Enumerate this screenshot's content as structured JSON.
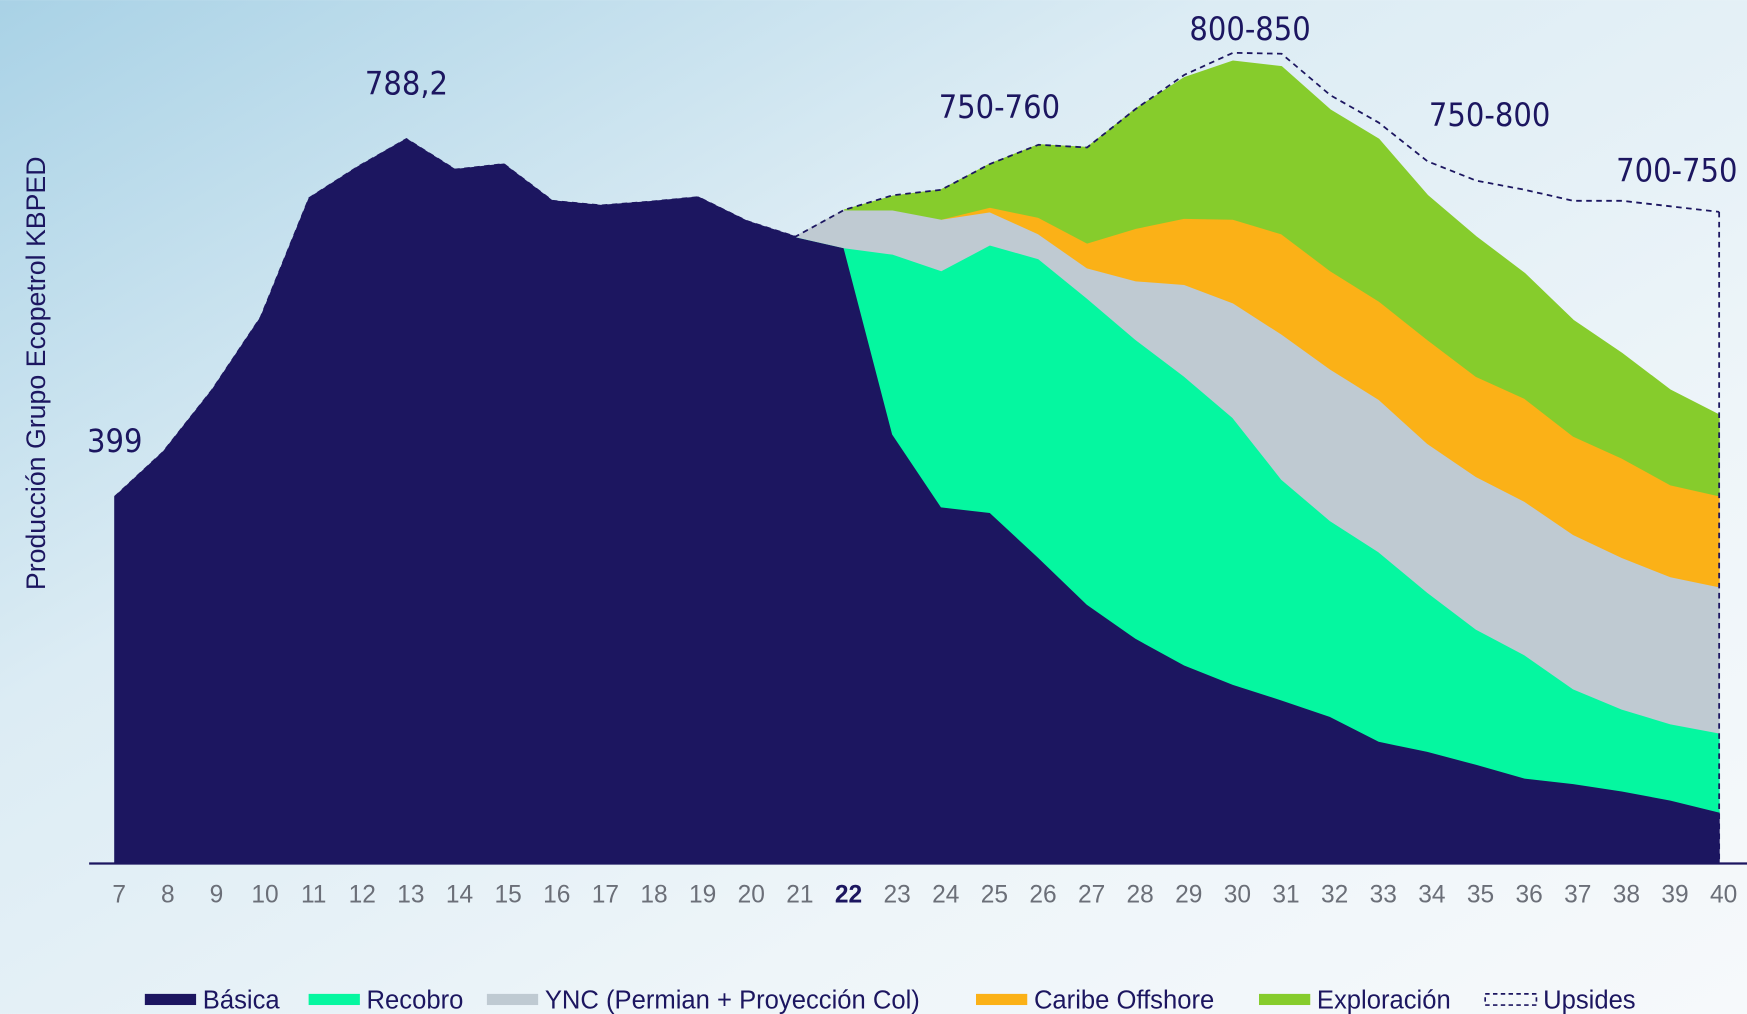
{
  "chart_data": {
    "type": "stacked_area",
    "y_label": "Producción Grupo Ecopetrol KBPED",
    "categories": [
      "7",
      "8",
      "9",
      "10",
      "11",
      "12",
      "13",
      "14",
      "15",
      "16",
      "17",
      "18",
      "19",
      "20",
      "21",
      "22",
      "23",
      "24",
      "25",
      "26",
      "27",
      "28",
      "29",
      "30",
      "31",
      "32",
      "33",
      "34",
      "35",
      "36",
      "37",
      "38",
      "39",
      "40"
    ],
    "highlight_category": "22",
    "series": [
      {
        "name": "Básica",
        "color": "#1c1660",
        "values": [
          399,
          448,
          515,
          594,
          724,
          758,
          788.2,
          755,
          761,
          721,
          716,
          720,
          725,
          699,
          682,
          670,
          467,
          388,
          382,
          333,
          282,
          245,
          216,
          195,
          178,
          160,
          133,
          122,
          108,
          93,
          87,
          79,
          69,
          56
        ],
        "value_labels": [
          "399",
          null,
          null,
          null,
          null,
          null,
          "788,2",
          null,
          null,
          null,
          null,
          null,
          null,
          null,
          null,
          null,
          null,
          null,
          null,
          null,
          null,
          null,
          null,
          null,
          null,
          null,
          null,
          null,
          null,
          null,
          null,
          null,
          null,
          null
        ]
      },
      {
        "name": "Recobro",
        "color": "#05f7a0",
        "values": [
          null,
          null,
          null,
          null,
          null,
          null,
          null,
          null,
          null,
          null,
          null,
          null,
          null,
          null,
          0,
          0,
          196,
          257,
          291,
          325,
          333,
          325,
          314,
          290,
          240,
          213,
          206,
          173,
          147,
          134,
          103,
          89,
          83,
          86
        ]
      },
      {
        "name": "YNC (Permian + Proyección Col)",
        "color": "#bfcad2",
        "values": [
          null,
          null,
          null,
          null,
          null,
          null,
          null,
          null,
          null,
          null,
          null,
          null,
          null,
          null,
          0,
          41,
          48,
          56,
          36,
          27,
          33,
          64,
          100,
          125,
          158,
          165,
          166,
          162,
          166,
          167,
          168,
          165,
          160,
          159
        ]
      },
      {
        "name": "Caribe Offshore",
        "color": "#fbb117",
        "values": [
          null,
          null,
          null,
          null,
          null,
          null,
          null,
          null,
          null,
          null,
          null,
          null,
          null,
          null,
          null,
          null,
          null,
          0,
          5,
          18,
          27,
          57,
          72,
          91,
          109,
          107,
          107,
          113,
          109,
          112,
          107,
          108,
          100,
          99
        ]
      },
      {
        "name": "Exploración",
        "color": "#86cc2c",
        "values": [
          null,
          null,
          null,
          null,
          null,
          null,
          null,
          null,
          null,
          null,
          null,
          null,
          null,
          null,
          null,
          0,
          15,
          32,
          47,
          79,
          104,
          130,
          153,
          172,
          182,
          175,
          176,
          157,
          152,
          136,
          126,
          114,
          103,
          88
        ]
      },
      {
        "name": "Upsides",
        "color": "#1c1660",
        "style": "dashed",
        "stacked": false,
        "values": [
          399,
          448,
          515,
          594,
          724,
          758,
          788.2,
          755,
          761,
          721,
          716,
          720,
          725,
          699,
          682,
          711,
          727,
          733,
          761,
          782,
          779,
          821,
          858,
          882,
          881,
          836,
          806,
          764,
          743,
          733,
          721,
          721,
          715,
          709
        ]
      }
    ],
    "annotations": [
      "750-760",
      "800-850",
      "750-800",
      "700-750"
    ]
  }
}
